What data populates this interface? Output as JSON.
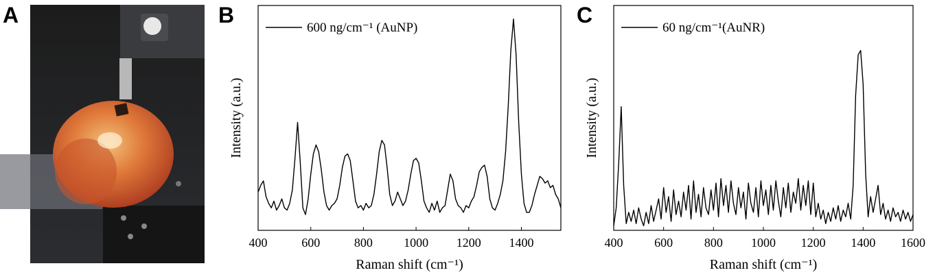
{
  "panels": [
    "A",
    "B",
    "C"
  ],
  "chart_data": [
    {
      "type": "line",
      "x": [
        400,
        410,
        420,
        430,
        440,
        450,
        460,
        470,
        480,
        490,
        500,
        510,
        520,
        530,
        540,
        550,
        560,
        570,
        580,
        590,
        600,
        610,
        620,
        630,
        640,
        650,
        660,
        670,
        680,
        690,
        700,
        710,
        720,
        730,
        740,
        750,
        760,
        770,
        780,
        790,
        800,
        810,
        820,
        830,
        840,
        850,
        860,
        870,
        880,
        890,
        900,
        910,
        920,
        930,
        940,
        950,
        960,
        970,
        980,
        990,
        1000,
        1010,
        1020,
        1030,
        1040,
        1050,
        1060,
        1070,
        1080,
        1090,
        1100,
        1110,
        1120,
        1130,
        1140,
        1150,
        1160,
        1170,
        1180,
        1190,
        1200,
        1210,
        1220,
        1230,
        1240,
        1250,
        1260,
        1270,
        1280,
        1290,
        1300,
        1310,
        1320,
        1330,
        1340,
        1350,
        1360,
        1370,
        1380,
        1390,
        1400,
        1410,
        1420,
        1430,
        1440,
        1450,
        1460,
        1470,
        1480,
        1490,
        1500,
        1510,
        1520,
        1530,
        1540,
        1550
      ],
      "series": [
        {
          "name": "600 ng/cm⁻¹ (AuNP)",
          "color": "#000000",
          "values": [
            17,
            20,
            22,
            15,
            12,
            10,
            13,
            9,
            11,
            14,
            10,
            9,
            12,
            18,
            32,
            48,
            30,
            10,
            7,
            14,
            25,
            34,
            38,
            35,
            27,
            17,
            11,
            9,
            11,
            12,
            14,
            20,
            28,
            33,
            34,
            31,
            22,
            13,
            10,
            11,
            9,
            12,
            10,
            11,
            16,
            25,
            35,
            40,
            38,
            28,
            16,
            11,
            13,
            17,
            14,
            11,
            13,
            18,
            25,
            31,
            32,
            30,
            22,
            13,
            10,
            8,
            12,
            9,
            13,
            8,
            10,
            11,
            18,
            25,
            22,
            14,
            11,
            10,
            8,
            11,
            10,
            13,
            15,
            20,
            26,
            28,
            29,
            24,
            14,
            10,
            9,
            12,
            16,
            22,
            35,
            55,
            80,
            94,
            78,
            48,
            25,
            12,
            8,
            8,
            11,
            16,
            20,
            24,
            23,
            21,
            22,
            19,
            20,
            16,
            14,
            10
          ]
        }
      ],
      "xlim": [
        400,
        1550
      ],
      "ylim": [
        0,
        100
      ],
      "xticks": [
        400,
        600,
        800,
        1000,
        1200,
        1400
      ],
      "x_label": "Raman shift (cm⁻¹)",
      "y_label": "Intensity (a.u.)",
      "legend": "upper left"
    },
    {
      "type": "line",
      "x": [
        400,
        410,
        420,
        430,
        440,
        450,
        460,
        470,
        480,
        490,
        500,
        510,
        520,
        530,
        540,
        550,
        560,
        570,
        580,
        590,
        600,
        610,
        620,
        630,
        640,
        650,
        660,
        670,
        680,
        690,
        700,
        710,
        720,
        730,
        740,
        750,
        760,
        770,
        780,
        790,
        800,
        810,
        820,
        830,
        840,
        850,
        860,
        870,
        880,
        890,
        900,
        910,
        920,
        930,
        940,
        950,
        960,
        970,
        980,
        990,
        1000,
        1010,
        1020,
        1030,
        1040,
        1050,
        1060,
        1070,
        1080,
        1090,
        1100,
        1110,
        1120,
        1130,
        1140,
        1150,
        1160,
        1170,
        1180,
        1190,
        1200,
        1210,
        1220,
        1230,
        1240,
        1250,
        1260,
        1270,
        1280,
        1290,
        1300,
        1310,
        1320,
        1330,
        1340,
        1350,
        1360,
        1370,
        1380,
        1390,
        1400,
        1410,
        1420,
        1430,
        1440,
        1450,
        1460,
        1470,
        1480,
        1490,
        1500,
        1510,
        1520,
        1530,
        1540,
        1550,
        1560,
        1570,
        1580,
        1590,
        1600
      ],
      "series": [
        {
          "name": "60 ng/cm⁻¹(AuNR)",
          "color": "#000000",
          "values": [
            2,
            10,
            30,
            55,
            20,
            3,
            8,
            4,
            9,
            3,
            10,
            5,
            2,
            8,
            3,
            11,
            4,
            9,
            14,
            5,
            19,
            8,
            15,
            4,
            18,
            7,
            13,
            6,
            17,
            9,
            20,
            5,
            22,
            8,
            16,
            6,
            19,
            10,
            7,
            18,
            9,
            21,
            6,
            23,
            11,
            20,
            8,
            22,
            12,
            7,
            19,
            10,
            17,
            5,
            21,
            12,
            8,
            19,
            6,
            22,
            11,
            18,
            7,
            20,
            9,
            22,
            13,
            6,
            19,
            10,
            21,
            8,
            17,
            12,
            23,
            9,
            20,
            11,
            22,
            7,
            21,
            6,
            12,
            5,
            9,
            3,
            8,
            4,
            10,
            5,
            11,
            4,
            9,
            6,
            12,
            5,
            20,
            60,
            78,
            80,
            65,
            25,
            6,
            15,
            8,
            14,
            20,
            7,
            12,
            5,
            9,
            4,
            10,
            6,
            8,
            4,
            9,
            5,
            8,
            4,
            7
          ]
        }
      ],
      "xlim": [
        400,
        1600
      ],
      "ylim": [
        0,
        100
      ],
      "xticks": [
        400,
        600,
        800,
        1000,
        1200,
        1400,
        1600
      ],
      "x_label": "Raman shift (cm⁻¹)",
      "y_label": "Intensity (a.u.)",
      "legend": "upper left"
    }
  ]
}
